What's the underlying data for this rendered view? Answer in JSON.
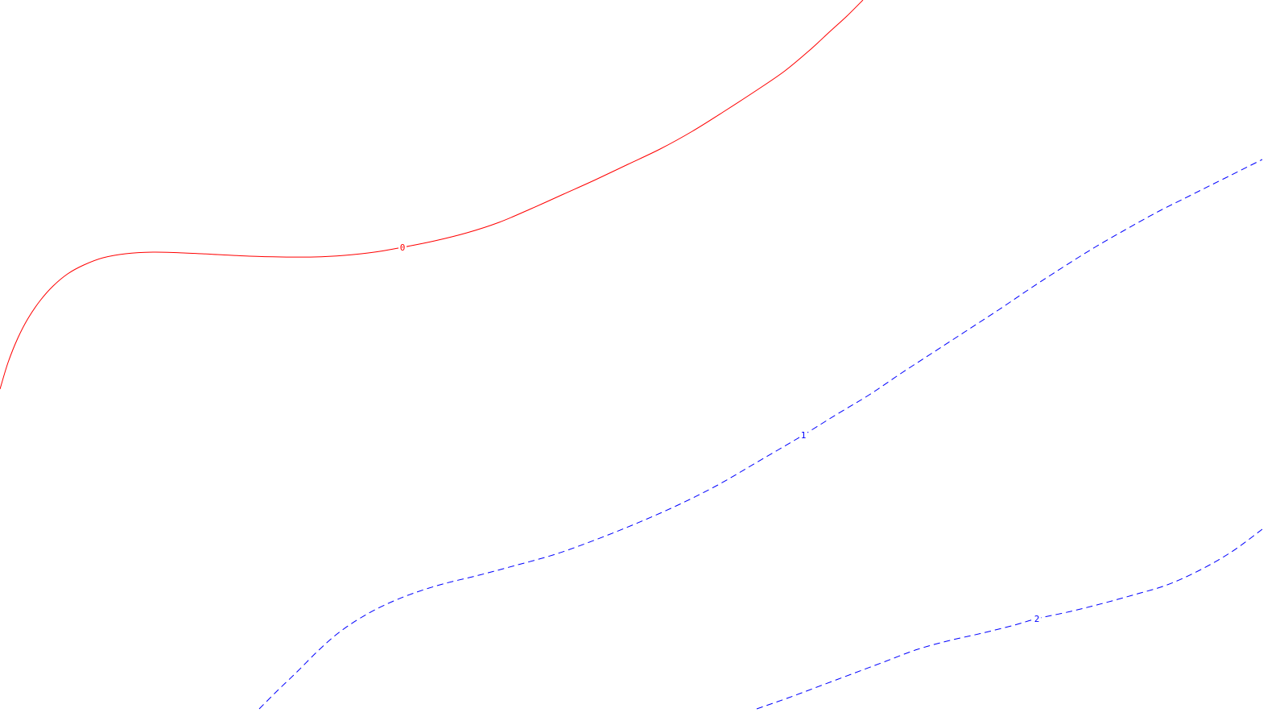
{
  "chart_data": {
    "type": "contour",
    "grid": false,
    "series": [
      {
        "level": 0,
        "label": "0",
        "color": "#ff0000",
        "line_style": "solid",
        "points": [
          [
            0,
            483
          ],
          [
            10,
            450
          ],
          [
            22,
            420
          ],
          [
            35,
            395
          ],
          [
            50,
            373
          ],
          [
            66,
            355
          ],
          [
            84,
            340
          ],
          [
            104,
            329
          ],
          [
            128,
            320
          ],
          [
            156,
            315
          ],
          [
            190,
            313
          ],
          [
            228,
            314
          ],
          [
            270,
            316
          ],
          [
            310,
            318
          ],
          [
            350,
            319
          ],
          [
            390,
            319
          ],
          [
            428,
            317
          ],
          [
            465,
            313
          ],
          [
            500,
            307
          ],
          [
            540,
            299
          ],
          [
            580,
            289
          ],
          [
            620,
            276
          ],
          [
            660,
            259
          ],
          [
            700,
            241
          ],
          [
            740,
            223
          ],
          [
            780,
            204
          ],
          [
            820,
            185
          ],
          [
            860,
            163
          ],
          [
            900,
            138
          ],
          [
            940,
            112
          ],
          [
            975,
            88
          ],
          [
            1005,
            63
          ],
          [
            1030,
            40
          ],
          [
            1052,
            20
          ],
          [
            1072,
            0
          ]
        ],
        "label_at": [
          500,
          307
        ]
      },
      {
        "level": 1,
        "label": "1",
        "color": "#0000ff",
        "line_style": "dashed",
        "points": [
          [
            322,
            880
          ],
          [
            345,
            857
          ],
          [
            370,
            833
          ],
          [
            395,
            808
          ],
          [
            420,
            786
          ],
          [
            448,
            767
          ],
          [
            478,
            751
          ],
          [
            512,
            737
          ],
          [
            550,
            725
          ],
          [
            595,
            714
          ],
          [
            640,
            702
          ],
          [
            690,
            688
          ],
          [
            740,
            670
          ],
          [
            790,
            650
          ],
          [
            840,
            628
          ],
          [
            890,
            603
          ],
          [
            940,
            574
          ],
          [
            998,
            540
          ],
          [
            1040,
            514
          ],
          [
            1080,
            490
          ],
          [
            1120,
            463
          ],
          [
            1160,
            437
          ],
          [
            1200,
            411
          ],
          [
            1240,
            385
          ],
          [
            1280,
            358
          ],
          [
            1320,
            332
          ],
          [
            1360,
            307
          ],
          [
            1400,
            284
          ],
          [
            1440,
            262
          ],
          [
            1480,
            242
          ],
          [
            1520,
            222
          ],
          [
            1568,
            198
          ]
        ],
        "label_at": [
          998,
          540
        ]
      },
      {
        "level": 2,
        "label": "2",
        "color": "#0000ff",
        "line_style": "dashed",
        "points": [
          [
            940,
            880
          ],
          [
            980,
            866
          ],
          [
            1020,
            851
          ],
          [
            1060,
            836
          ],
          [
            1100,
            821
          ],
          [
            1140,
            806
          ],
          [
            1180,
            795
          ],
          [
            1220,
            786
          ],
          [
            1260,
            776
          ],
          [
            1288,
            768
          ],
          [
            1330,
            759
          ],
          [
            1370,
            749
          ],
          [
            1410,
            738
          ],
          [
            1450,
            726
          ],
          [
            1490,
            708
          ],
          [
            1530,
            685
          ],
          [
            1568,
            657
          ]
        ],
        "label_at": [
          1288,
          768
        ]
      }
    ]
  }
}
